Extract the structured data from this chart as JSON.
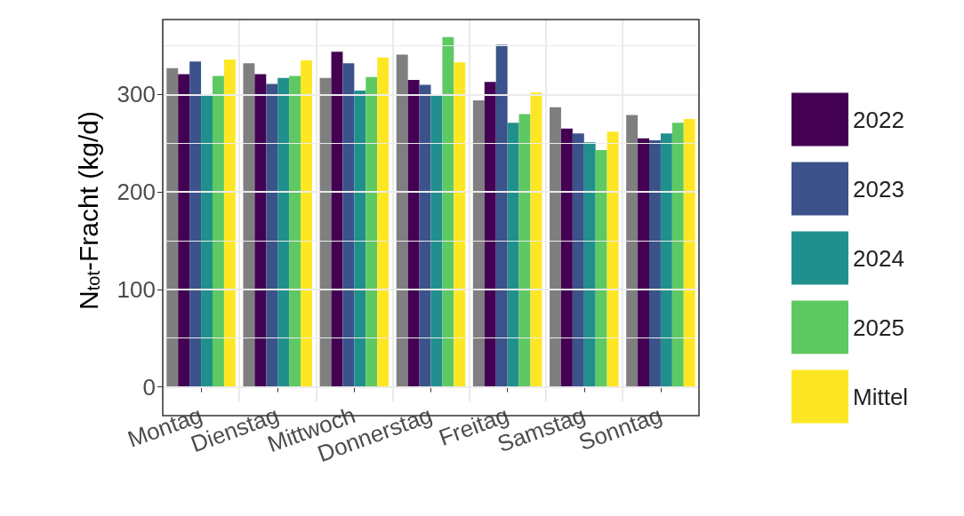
{
  "chart_data": {
    "type": "bar",
    "ylabel": "N$_{tot}$-Fracht (kg/d)",
    "categories": [
      "Montag",
      "Dienstag",
      "Mittwoch",
      "Donnerstag",
      "Freitag",
      "Samstag",
      "Sonntag"
    ],
    "series": [
      {
        "color": "#7f7f7f",
        "values": [
          327,
          332,
          317,
          341,
          294,
          287,
          279
        ]
      },
      {
        "name": "2022",
        "color": "#440154",
        "values": [
          321,
          321,
          344,
          315,
          313,
          265,
          255
        ]
      },
      {
        "name": "2023",
        "color": "#3b528b",
        "values": [
          334,
          311,
          332,
          310,
          351,
          260,
          253
        ]
      },
      {
        "name": "2024",
        "color": "#21908c",
        "values": [
          299,
          317,
          304,
          300,
          271,
          251,
          260
        ]
      },
      {
        "name": "2025",
        "color": "#5ec962",
        "values": [
          319,
          319,
          318,
          359,
          280,
          243,
          271
        ]
      },
      {
        "name": "Mittel",
        "color": "#fde725",
        "values": [
          336,
          335,
          338,
          333,
          302,
          262,
          275
        ]
      }
    ],
    "ylim": [
      -15,
      377
    ],
    "yticks": [
      0,
      100,
      200,
      300
    ],
    "grid": true,
    "legend": "right"
  }
}
